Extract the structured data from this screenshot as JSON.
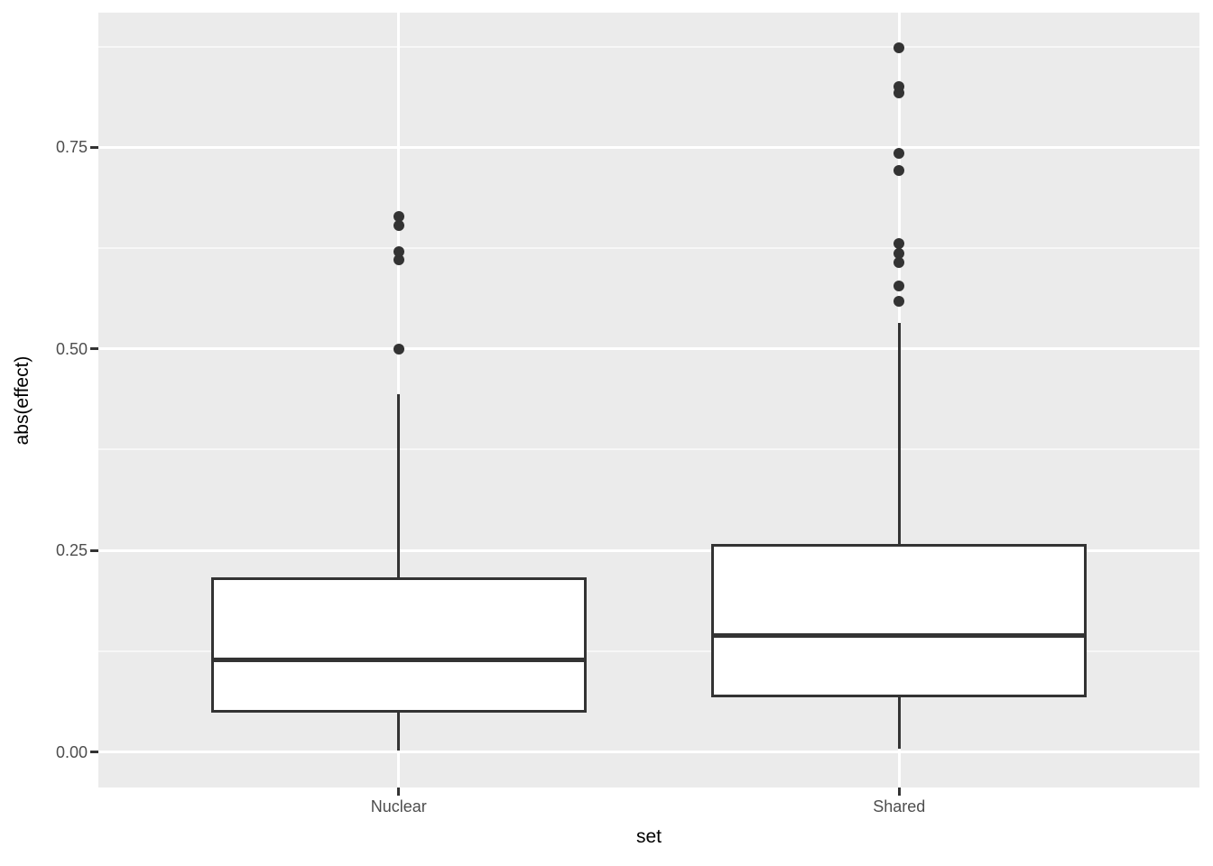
{
  "chart_data": {
    "type": "boxplot",
    "title": "",
    "xlabel": "set",
    "ylabel": "abs(effect)",
    "categories": [
      "Nuclear",
      "Shared"
    ],
    "ylim": [
      -0.044,
      0.917
    ],
    "yticks": {
      "values": [
        0.0,
        0.25,
        0.5,
        0.75
      ],
      "labels": [
        "0.00",
        "0.25",
        "0.50",
        "0.75"
      ]
    },
    "minor_yticks": [
      0.125,
      0.375,
      0.625,
      0.875
    ],
    "grid": true,
    "legend": false,
    "series": [
      {
        "name": "Nuclear",
        "whisker_low": 0.002,
        "q1": 0.049,
        "median": 0.114,
        "q3": 0.217,
        "whisker_high": 0.444,
        "outliers": [
          0.5,
          0.61,
          0.621,
          0.653,
          0.664
        ]
      },
      {
        "name": "Shared",
        "whisker_low": 0.004,
        "q1": 0.068,
        "median": 0.144,
        "q3": 0.258,
        "whisker_high": 0.532,
        "outliers": [
          0.559,
          0.578,
          0.607,
          0.618,
          0.631,
          0.721,
          0.742,
          0.817,
          0.825,
          0.873
        ]
      }
    ]
  },
  "style": {
    "panel_bg": "#EBEBEB",
    "grid_color": "#FFFFFF",
    "box_stroke": "#333333",
    "box_fill": "#FFFFFF",
    "tick_text_color": "#4D4D4D",
    "axis_title_color": "#000000"
  }
}
